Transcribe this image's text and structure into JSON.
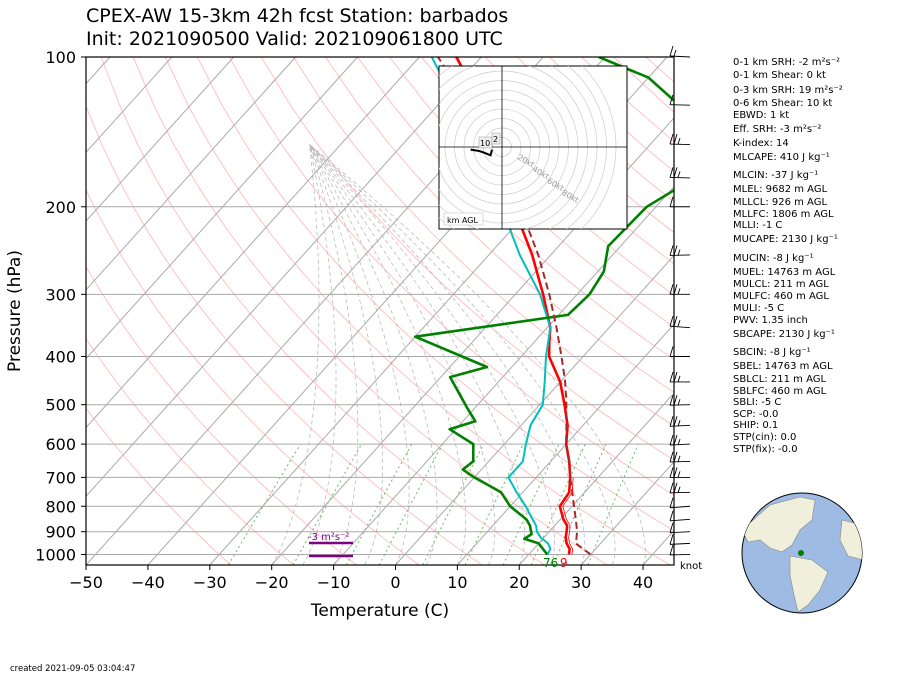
{
  "header": {
    "title_line1": "CPEX-AW 15-3km  42h fcst  Station: barbados",
    "title_line2": "Init: 2021090500  Valid: 202109061800 UTC"
  },
  "footer": {
    "created": "created 2021-09-05 03:04:47"
  },
  "colors": {
    "temperature": "#ff0000",
    "dewpoint": "#008000",
    "virtual_temp": "#ff0000",
    "wetbulb": "#00bfbf",
    "parcel": "#a52a2a",
    "dry_adiabat": "#ff9999",
    "moist_adiabat": "#bbbbbb",
    "mixing_ratio": "#66bb66",
    "isotherm": "#aaaaaa",
    "srh_bar": "#800080",
    "ocean": "#9dbbe3",
    "land": "#efefdb",
    "station_marker": "#008000"
  },
  "chart_data": {
    "type": "line",
    "subtype": "skew-t log-p",
    "xlabel": "Temperature (C)",
    "ylabel": "Pressure (hPa)",
    "xlim": [
      -50,
      45
    ],
    "ylim": [
      1050,
      100
    ],
    "y_scale": "log",
    "x_ticks": [
      -50,
      -40,
      -30,
      -20,
      -10,
      0,
      10,
      20,
      30,
      40
    ],
    "x_tick_labels": [
      "−50",
      "−40",
      "−30",
      "−20",
      "−10",
      "0",
      "10",
      "20",
      "30",
      "40"
    ],
    "y_ticks": [
      100,
      200,
      300,
      400,
      500,
      600,
      700,
      800,
      900,
      1000
    ],
    "series": [
      {
        "key": "temperature",
        "p": [
          1000,
          975,
          950,
          925,
          900,
          875,
          850,
          800,
          750,
          700,
          650,
          600,
          550,
          500,
          450,
          400,
          375,
          350,
          300,
          250,
          200,
          175,
          150,
          125,
          100
        ],
        "t": [
          26.5,
          25.8,
          24.5,
          23.5,
          22.8,
          22.0,
          20.5,
          18.0,
          17.5,
          15.5,
          13.0,
          10.0,
          7.5,
          4.0,
          0.0,
          -5.5,
          -7.5,
          -9.5,
          -15.5,
          -23.0,
          -33.0,
          -38.5,
          -45.0,
          -53.0,
          -64.0
        ]
      },
      {
        "key": "wetbulb",
        "p": [
          1000,
          975,
          950,
          925,
          900,
          875,
          850,
          800,
          750,
          700,
          650,
          600,
          550,
          500,
          450,
          400,
          350,
          300,
          250,
          200,
          150,
          125,
          100
        ],
        "t": [
          23.0,
          22.7,
          21.5,
          19.5,
          18.0,
          17.0,
          15.5,
          12.5,
          9.0,
          5.5,
          5.5,
          3.5,
          1.5,
          0.5,
          -2.5,
          -6.0,
          -9.5,
          -16.0,
          -25.0,
          -35.0,
          -48.0,
          -57.0,
          -68.0
        ]
      },
      {
        "key": "dewpoint",
        "p": [
          1000,
          975,
          950,
          930,
          910,
          875,
          850,
          800,
          750,
          700,
          675,
          650,
          600,
          560,
          540,
          505,
          440,
          420,
          365,
          330,
          300,
          270,
          240,
          200,
          175,
          150,
          125,
          110,
          100
        ],
        "t": [
          23.0,
          21.5,
          20.0,
          17.0,
          17.5,
          16.0,
          14.5,
          10.0,
          6.5,
          0.0,
          -3.0,
          -2.5,
          -5.0,
          -11.0,
          -8.0,
          -11.5,
          -18.5,
          -14.0,
          -30.0,
          -8.5,
          -8.0,
          -9.0,
          -12.0,
          -11.5,
          -8.0,
          -14.0,
          -21.0,
          -30.0,
          -41.0
        ]
      },
      {
        "key": "parcel",
        "p": [
          1000,
          950,
          900,
          850,
          800,
          750,
          700,
          650,
          600,
          550,
          500,
          450,
          400,
          350,
          300,
          250,
          200,
          175,
          150,
          125,
          100
        ],
        "t": [
          30.0,
          26.0,
          24.5,
          22.5,
          20.3,
          18.0,
          15.5,
          13.0,
          10.0,
          7.3,
          4.3,
          0.8,
          -3.5,
          -8.5,
          -14.5,
          -22.0,
          -32.0,
          -38.3,
          -45.5,
          -55.0,
          -67.0
        ]
      }
    ],
    "annotations": {
      "srh_label": "-3 m²s⁻²",
      "surface_dewpoint": "76",
      "surface_temp": "9",
      "wind_unit": "knot"
    },
    "wind_profile": [
      {
        "p": 100,
        "dir": 70,
        "spd": 5
      },
      {
        "p": 125,
        "dir": 80,
        "spd": 10
      },
      {
        "p": 150,
        "dir": 80,
        "spd": 15
      },
      {
        "p": 175,
        "dir": 80,
        "spd": 15
      },
      {
        "p": 200,
        "dir": 90,
        "spd": 10
      },
      {
        "p": 250,
        "dir": 100,
        "spd": 15
      },
      {
        "p": 300,
        "dir": 90,
        "spd": 15
      },
      {
        "p": 350,
        "dir": 60,
        "spd": 15
      },
      {
        "p": 400,
        "dir": 90,
        "spd": 10
      },
      {
        "p": 450,
        "dir": 90,
        "spd": 15
      },
      {
        "p": 500,
        "dir": 100,
        "spd": 15
      },
      {
        "p": 550,
        "dir": 110,
        "spd": 15
      },
      {
        "p": 600,
        "dir": 110,
        "spd": 15
      },
      {
        "p": 650,
        "dir": 100,
        "spd": 15
      },
      {
        "p": 700,
        "dir": 90,
        "spd": 15
      },
      {
        "p": 750,
        "dir": 100,
        "spd": 15
      },
      {
        "p": 800,
        "dir": 120,
        "spd": 10
      },
      {
        "p": 850,
        "dir": 120,
        "spd": 10
      },
      {
        "p": 900,
        "dir": 110,
        "spd": 10
      },
      {
        "p": 950,
        "dir": 110,
        "spd": 10
      },
      {
        "p": 1000,
        "dir": 100,
        "spd": 10
      }
    ],
    "hodograph": {
      "ring_labels": [
        "20kt",
        "40kt",
        "60kt",
        "80kt"
      ],
      "height_labels": [
        "10",
        "2"
      ],
      "legend": "km AGL",
      "u": [
        -11,
        -8,
        -6.5,
        -4,
        -3.5
      ],
      "v": [
        0.5,
        0,
        -0.5,
        -1.5,
        0.5
      ]
    }
  },
  "indices": [
    {
      "label": "0-1 km SRH: -2 m²s⁻²"
    },
    {
      "label": "0-1 km Shear: 0 kt"
    },
    {
      "label": "0-3 km SRH: 19 m²s⁻²"
    },
    {
      "label": "0-6 km Shear: 10 kt"
    },
    {
      "label": "EBWD: 1 kt"
    },
    {
      "label": "Eff. SRH: -3 m²s⁻²"
    },
    {
      "label": "K-index: 14"
    },
    {
      "label": "MLCAPE: 410 J kg⁻¹"
    },
    {
      "label": "MLCIN: -37 J kg⁻¹"
    },
    {
      "label": "MLEL: 9682 m AGL"
    },
    {
      "label": "MLLCL: 926 m AGL"
    },
    {
      "label": "MLLFC: 1806 m AGL"
    },
    {
      "label": "MLLI: -1 C"
    },
    {
      "label": "MUCAPE: 2130 J kg⁻¹"
    },
    {
      "label": "MUCIN: -8 J kg⁻¹"
    },
    {
      "label": "MUEL: 14763 m AGL"
    },
    {
      "label": "MULCL: 211 m AGL"
    },
    {
      "label": "MULFC: 460 m AGL"
    },
    {
      "label": "MULI: -5 C"
    },
    {
      "label": "PWV: 1.35 inch"
    },
    {
      "label": "SBCAPE: 2130 J kg⁻¹"
    },
    {
      "label": "SBCIN: -8 J kg⁻¹"
    },
    {
      "label": "SBEL: 14763 m AGL"
    },
    {
      "label": "SBLCL: 211 m AGL"
    },
    {
      "label": "SBLFC: 460 m AGL"
    },
    {
      "label": "SBLI: -5 C"
    },
    {
      "label": "SCP: -0.0"
    },
    {
      "label": "SHIP: 0.1"
    },
    {
      "label": "STP(cin): 0.0"
    },
    {
      "label": "STP(fix): -0.0"
    }
  ],
  "globe": {
    "station_lat": 13.1,
    "station_lon": -59.6
  }
}
